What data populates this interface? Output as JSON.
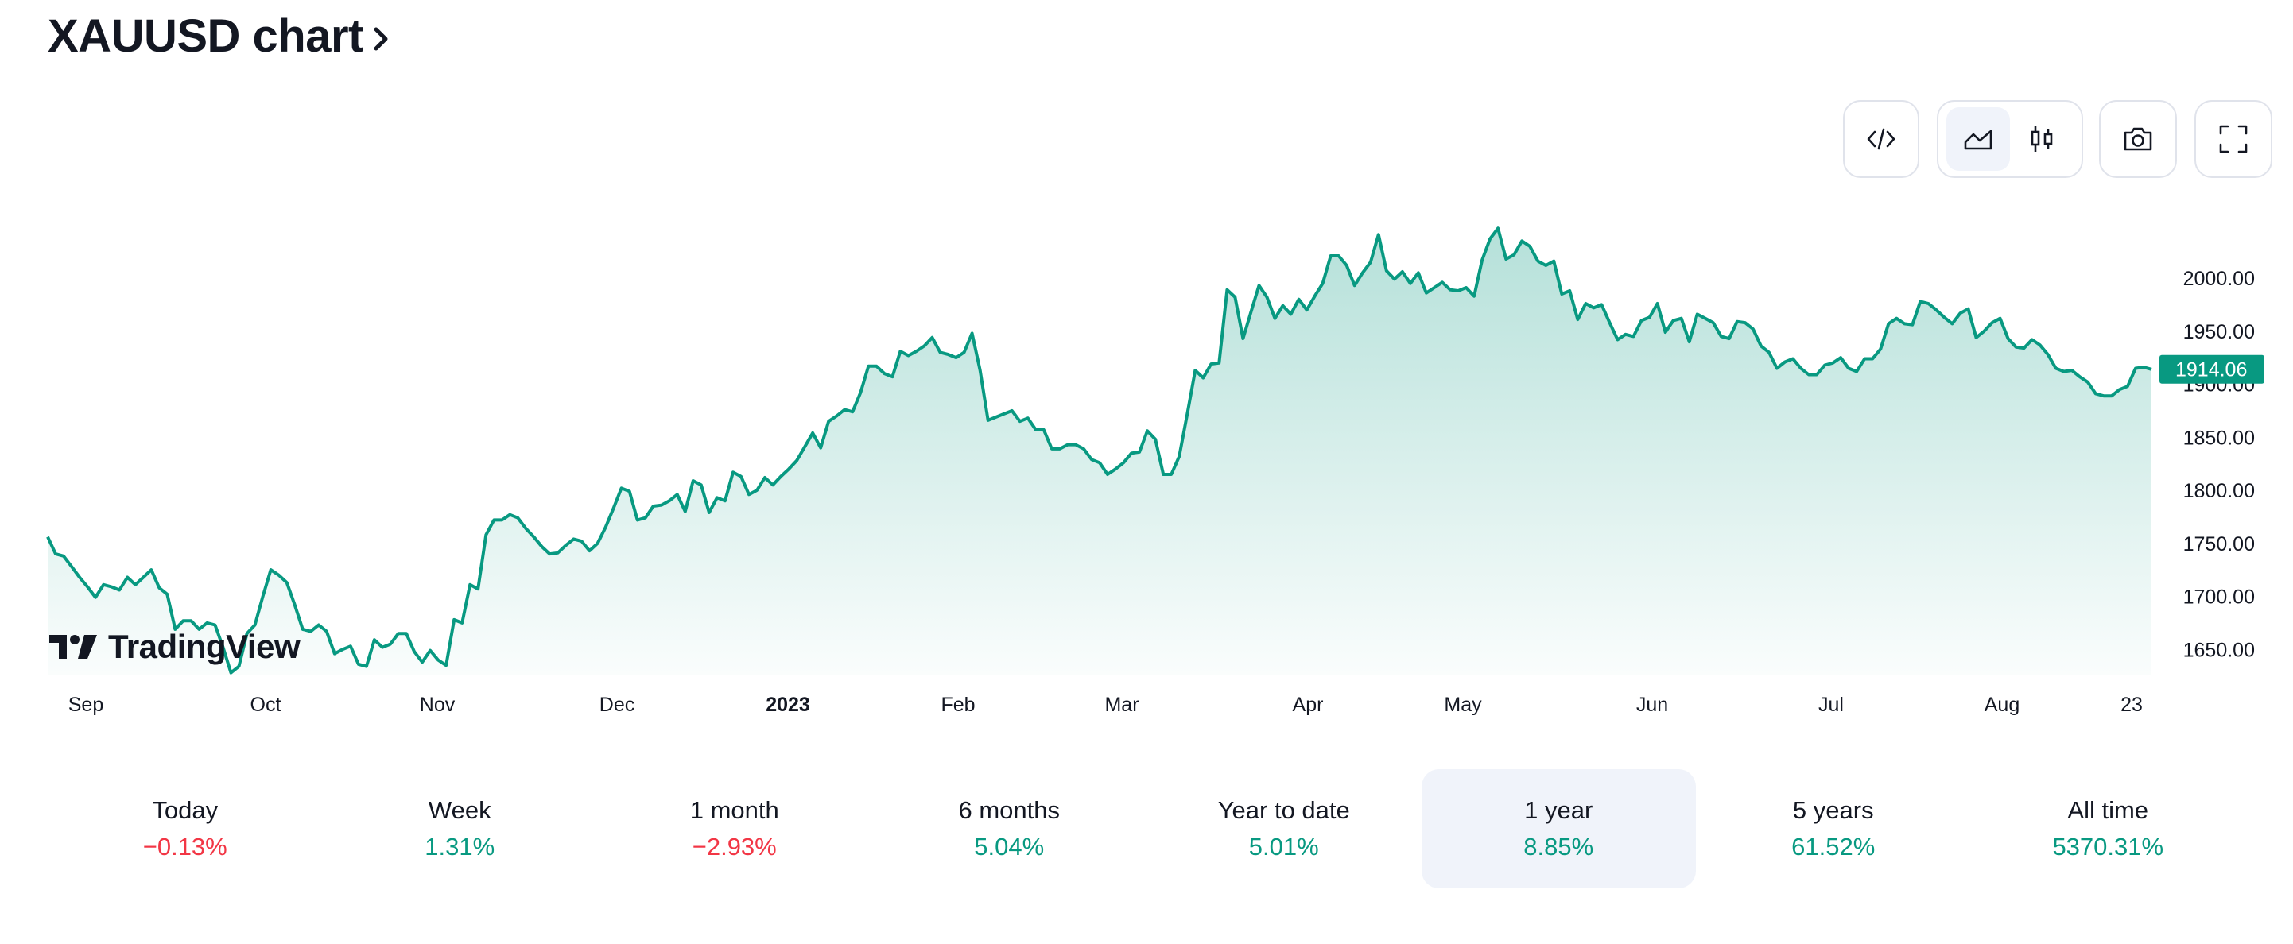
{
  "header": {
    "title": "XAUUSD chart"
  },
  "toolbar": {
    "embed_icon": "code-icon",
    "line_icon": "area-chart-icon",
    "candles_icon": "candlestick-icon",
    "snapshot_icon": "camera-icon",
    "fullscreen_icon": "fullscreen-icon"
  },
  "branding": {
    "logo_text": "TradingView"
  },
  "colors": {
    "line": "#089981",
    "positive": "#089981",
    "negative": "#f23645",
    "active_bg": "#f0f3fa"
  },
  "chart_data": {
    "type": "area",
    "x_tick_labels": [
      "Sep",
      "Oct",
      "Nov",
      "Dec",
      "2023",
      "Feb",
      "Mar",
      "Apr",
      "May",
      "Jun",
      "Jul",
      "Aug",
      "23"
    ],
    "y_tick_labels": [
      "2000.00",
      "1950.00",
      "1900.00",
      "1850.00",
      "1800.00",
      "1750.00",
      "1700.00",
      "1650.00"
    ],
    "ylim": [
      1630,
      2050
    ],
    "last_price": "1914.06",
    "grid": false,
    "series": [
      {
        "values": [
          1756,
          1740,
          1738,
          1728,
          1718,
          1709,
          1699,
          1711,
          1709,
          1706,
          1718,
          1711,
          1718,
          1725,
          1708,
          1702,
          1669,
          1677,
          1677,
          1669,
          1675,
          1673,
          1652,
          1628,
          1634,
          1665,
          1673,
          1700,
          1725,
          1720,
          1713,
          1692,
          1669,
          1667,
          1673,
          1667,
          1646,
          1650,
          1653,
          1636,
          1634,
          1659,
          1652,
          1655,
          1665,
          1665,
          1648,
          1638,
          1649,
          1640,
          1635,
          1678,
          1675,
          1711,
          1707,
          1758,
          1772,
          1772,
          1777,
          1774,
          1764,
          1756,
          1747,
          1740,
          1741,
          1748,
          1754,
          1752,
          1743,
          1750,
          1765,
          1783,
          1802,
          1799,
          1772,
          1774,
          1785,
          1786,
          1790,
          1796,
          1780,
          1809,
          1805,
          1779,
          1793,
          1790,
          1817,
          1813,
          1796,
          1800,
          1812,
          1805,
          1813,
          1820,
          1828,
          1841,
          1854,
          1840,
          1865,
          1870,
          1876,
          1874,
          1892,
          1917,
          1917,
          1910,
          1907,
          1931,
          1927,
          1931,
          1936,
          1944,
          1930,
          1928,
          1925,
          1930,
          1948,
          1913,
          1866,
          1869,
          1872,
          1875,
          1865,
          1868,
          1857,
          1857,
          1839,
          1839,
          1843,
          1843,
          1839,
          1829,
          1826,
          1815,
          1820,
          1826,
          1835,
          1836,
          1856,
          1848,
          1815,
          1815,
          1832,
          1872,
          1913,
          1906,
          1919,
          1920,
          1989,
          1982,
          1943,
          1968,
          1993,
          1982,
          1962,
          1974,
          1966,
          1980,
          1970,
          1983,
          1995,
          2021,
          2021,
          2012,
          1993,
          2005,
          2015,
          2041,
          2007,
          1999,
          2006,
          1995,
          2005,
          1986,
          1991,
          1996,
          1989,
          1988,
          1991,
          1983,
          2017,
          2037,
          2047,
          2018,
          2022,
          2035,
          2030,
          2016,
          2012,
          2016,
          1985,
          1988,
          1961,
          1976,
          1972,
          1975,
          1958,
          1942,
          1947,
          1945,
          1960,
          1963,
          1976,
          1949,
          1960,
          1962,
          1940,
          1966,
          1962,
          1958,
          1945,
          1943,
          1959,
          1958,
          1952,
          1936,
          1930,
          1915,
          1921,
          1924,
          1915,
          1909,
          1909,
          1918,
          1920,
          1925,
          1915,
          1912,
          1924,
          1924,
          1933,
          1957,
          1962,
          1957,
          1956,
          1978,
          1976,
          1970,
          1963,
          1957,
          1967,
          1971,
          1944,
          1950,
          1958,
          1962,
          1943,
          1935,
          1934,
          1942,
          1937,
          1928,
          1915,
          1912,
          1913,
          1907,
          1902,
          1891,
          1889,
          1889,
          1895,
          1898,
          1915,
          1916,
          1914
        ]
      }
    ]
  },
  "periods": [
    {
      "label": "Today",
      "value": "−0.13%",
      "trend": "neg"
    },
    {
      "label": "Week",
      "value": "1.31%",
      "trend": "pos"
    },
    {
      "label": "1 month",
      "value": "−2.93%",
      "trend": "neg"
    },
    {
      "label": "6 months",
      "value": "5.04%",
      "trend": "pos"
    },
    {
      "label": "Year to date",
      "value": "5.01%",
      "trend": "pos"
    },
    {
      "label": "1 year",
      "value": "8.85%",
      "trend": "pos",
      "active": true
    },
    {
      "label": "5 years",
      "value": "61.52%",
      "trend": "pos"
    },
    {
      "label": "All time",
      "value": "5370.31%",
      "trend": "pos"
    }
  ]
}
